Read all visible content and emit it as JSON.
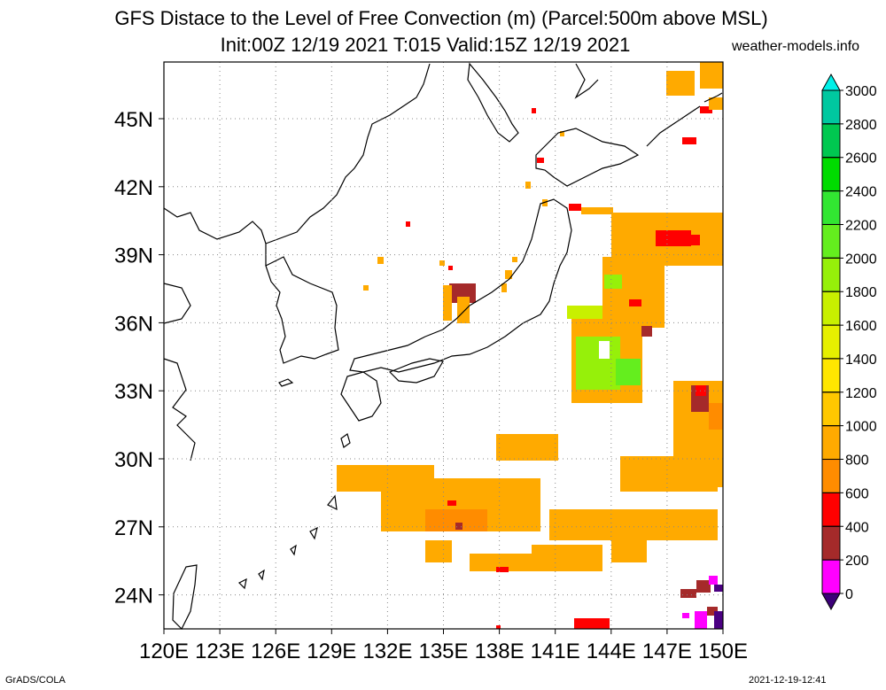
{
  "title_line1": "GFS Distace to the Level of Free Convection (m) (Parcel:500m above MSL)",
  "title_line2": "Init:00Z 12/19 2021 T:015 Valid:15Z 12/19 2021",
  "site": "weather-models.info",
  "footer_left": "GrADS/COLA",
  "footer_right": "2021-12-19-12:41",
  "map": {
    "lon_range": [
      120,
      150
    ],
    "lat_range": [
      22.5,
      47.5
    ],
    "lon_labels": [
      "120E",
      "123E",
      "126E",
      "129E",
      "132E",
      "135E",
      "138E",
      "141E",
      "144E",
      "147E",
      "150E"
    ],
    "lat_labels": [
      "45N",
      "42N",
      "39N",
      "36N",
      "33N",
      "30N",
      "27N",
      "24N"
    ]
  },
  "colorbar": {
    "labels": [
      "3000",
      "2800",
      "2600",
      "2400",
      "2200",
      "2000",
      "1800",
      "1600",
      "1400",
      "1200",
      "1000",
      "800",
      "600",
      "400",
      "200",
      "0"
    ],
    "colors": [
      "#00e0e0",
      "#00c8a0",
      "#00c850",
      "#00dc00",
      "#32e632",
      "#64ee1e",
      "#96f00a",
      "#c8f000",
      "#e6f000",
      "#ffe600",
      "#ffc800",
      "#ffaa00",
      "#ff8c00",
      "#ff0000",
      "#a52a2a",
      "#ff00ff",
      "#4b0082"
    ],
    "top_color": "#00f0e8",
    "bottom_color": "#3c0078"
  }
}
